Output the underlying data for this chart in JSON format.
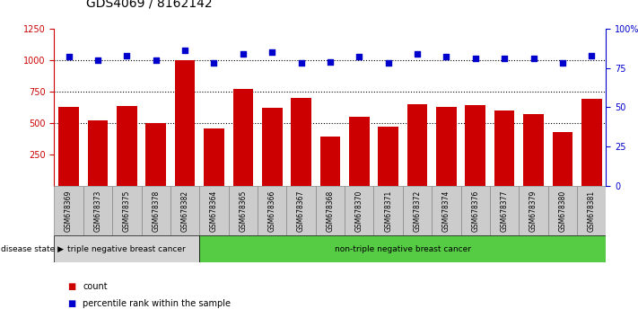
{
  "title": "GDS4069 / 8162142",
  "samples": [
    "GSM678369",
    "GSM678373",
    "GSM678375",
    "GSM678378",
    "GSM678382",
    "GSM678364",
    "GSM678365",
    "GSM678366",
    "GSM678367",
    "GSM678368",
    "GSM678370",
    "GSM678371",
    "GSM678372",
    "GSM678374",
    "GSM678376",
    "GSM678377",
    "GSM678379",
    "GSM678380",
    "GSM678381"
  ],
  "counts": [
    630,
    520,
    635,
    500,
    1000,
    460,
    770,
    620,
    700,
    390,
    550,
    470,
    650,
    630,
    640,
    600,
    570,
    430,
    690
  ],
  "percentile_ranks": [
    82,
    80,
    83,
    80,
    86,
    78,
    84,
    85,
    78,
    79,
    82,
    78,
    84,
    82,
    81,
    81,
    81,
    78,
    83
  ],
  "group1_label": "triple negative breast cancer",
  "group2_label": "non-triple negative breast cancer",
  "group1_count": 5,
  "group2_count": 14,
  "ylim_left": [
    0,
    1250
  ],
  "ylim_right": [
    0,
    100
  ],
  "yticks_left": [
    250,
    500,
    750,
    1000,
    1250
  ],
  "yticks_right": [
    0,
    25,
    50,
    75,
    100
  ],
  "bar_color": "#cc0000",
  "dot_color": "#0000cc",
  "group1_bg": "#d4d4d4",
  "group2_bg": "#55cc44",
  "tick_bg_color": "#cccccc",
  "left_axis_color": "#cc0000",
  "right_axis_color": "#0000cc",
  "disease_state_label": "disease state",
  "legend_count_label": "count",
  "legend_pct_label": "percentile rank within the sample",
  "dotted_lines": [
    500,
    750,
    1000
  ],
  "title_fontsize": 10,
  "tick_fontsize": 7,
  "bar_width": 0.7
}
